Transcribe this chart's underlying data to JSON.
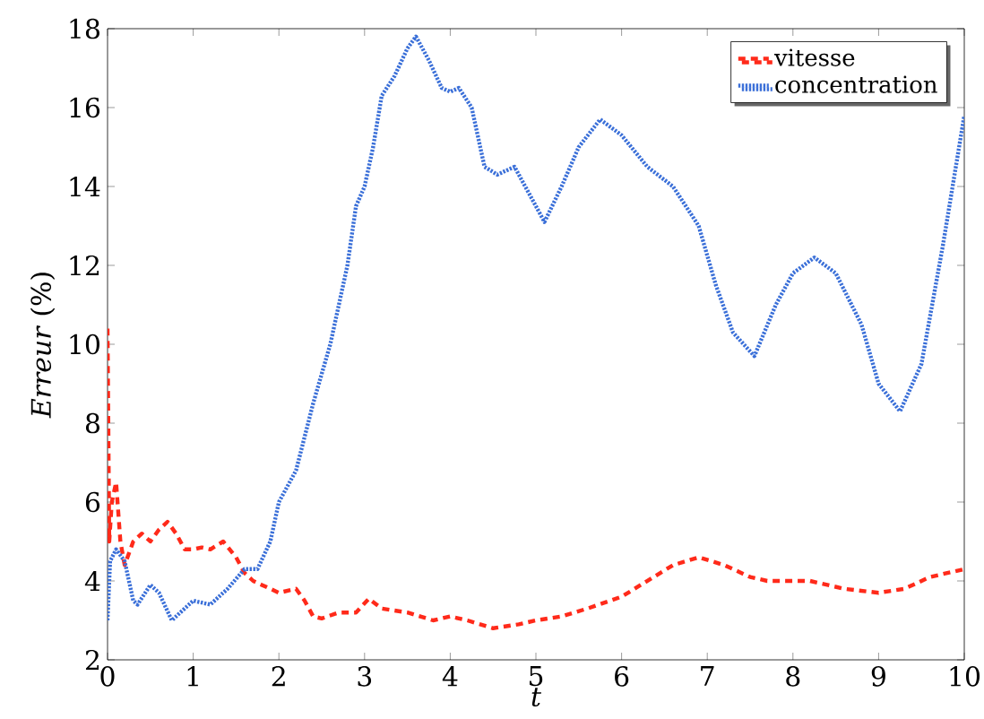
{
  "chart_data": {
    "type": "line",
    "xlabel": "*t*",
    "ylabel": "*Erreur* (%)",
    "xlim": [
      0,
      10
    ],
    "ylim": [
      2,
      18
    ],
    "xticks": [
      0,
      1,
      2,
      3,
      4,
      5,
      6,
      7,
      8,
      9,
      10
    ],
    "yticks": [
      2,
      4,
      6,
      8,
      10,
      12,
      14,
      16,
      18
    ],
    "legend": "top right",
    "grid": false,
    "series": [
      {
        "name": "vitesse",
        "color": "#ff2a1a",
        "line_style": "dashed",
        "x": [
          0,
          0.02,
          0.05,
          0.1,
          0.15,
          0.2,
          0.3,
          0.4,
          0.5,
          0.6,
          0.7,
          0.8,
          0.9,
          1.0,
          1.1,
          1.2,
          1.35,
          1.5,
          1.6,
          1.7,
          1.8,
          2.0,
          2.2,
          2.3,
          2.4,
          2.5,
          2.7,
          2.9,
          3.05,
          3.2,
          3.5,
          3.8,
          4.0,
          4.2,
          4.5,
          4.8,
          5.0,
          5.3,
          5.6,
          6.0,
          6.3,
          6.6,
          6.9,
          7.2,
          7.5,
          7.7,
          8.2,
          8.6,
          9.0,
          9.3,
          9.6,
          10.0
        ],
        "values": [
          10.4,
          5.0,
          6.0,
          6.5,
          5.0,
          4.4,
          5.0,
          5.2,
          5.0,
          5.3,
          5.5,
          5.2,
          4.8,
          4.8,
          4.85,
          4.8,
          5.0,
          4.6,
          4.2,
          4.0,
          3.9,
          3.7,
          3.8,
          3.5,
          3.1,
          3.05,
          3.2,
          3.2,
          3.55,
          3.3,
          3.2,
          3.0,
          3.1,
          3.0,
          2.8,
          2.9,
          3.0,
          3.1,
          3.3,
          3.6,
          4.0,
          4.4,
          4.6,
          4.4,
          4.1,
          4.0,
          4.0,
          3.8,
          3.7,
          3.8,
          4.1,
          4.3
        ]
      },
      {
        "name": "concentration",
        "color": "#3a6fd8",
        "line_style": "dotted",
        "x": [
          0,
          0.03,
          0.1,
          0.2,
          0.3,
          0.35,
          0.5,
          0.6,
          0.75,
          0.9,
          1.0,
          1.2,
          1.4,
          1.6,
          1.75,
          1.9,
          2.0,
          2.2,
          2.4,
          2.6,
          2.8,
          2.9,
          3.0,
          3.1,
          3.2,
          3.35,
          3.5,
          3.6,
          3.75,
          3.9,
          4.0,
          4.1,
          4.25,
          4.4,
          4.55,
          4.75,
          5.0,
          5.1,
          5.3,
          5.5,
          5.75,
          6.0,
          6.3,
          6.6,
          6.9,
          7.1,
          7.3,
          7.55,
          7.8,
          8.0,
          8.25,
          8.5,
          8.8,
          9.0,
          9.25,
          9.5,
          9.75,
          10.0
        ],
        "values": [
          3.0,
          4.5,
          4.8,
          4.5,
          3.5,
          3.4,
          3.9,
          3.7,
          3.0,
          3.3,
          3.5,
          3.4,
          3.8,
          4.3,
          4.3,
          5.0,
          6.0,
          6.8,
          8.5,
          10.0,
          12.0,
          13.5,
          14.0,
          15.0,
          16.3,
          16.8,
          17.5,
          17.8,
          17.2,
          16.5,
          16.4,
          16.5,
          16.0,
          14.5,
          14.3,
          14.5,
          13.5,
          13.1,
          14.0,
          15.0,
          15.7,
          15.3,
          14.5,
          14.0,
          13.0,
          11.5,
          10.3,
          9.7,
          11.0,
          11.8,
          12.2,
          11.8,
          10.5,
          9.0,
          8.3,
          9.5,
          12.5,
          15.8
        ]
      }
    ]
  }
}
